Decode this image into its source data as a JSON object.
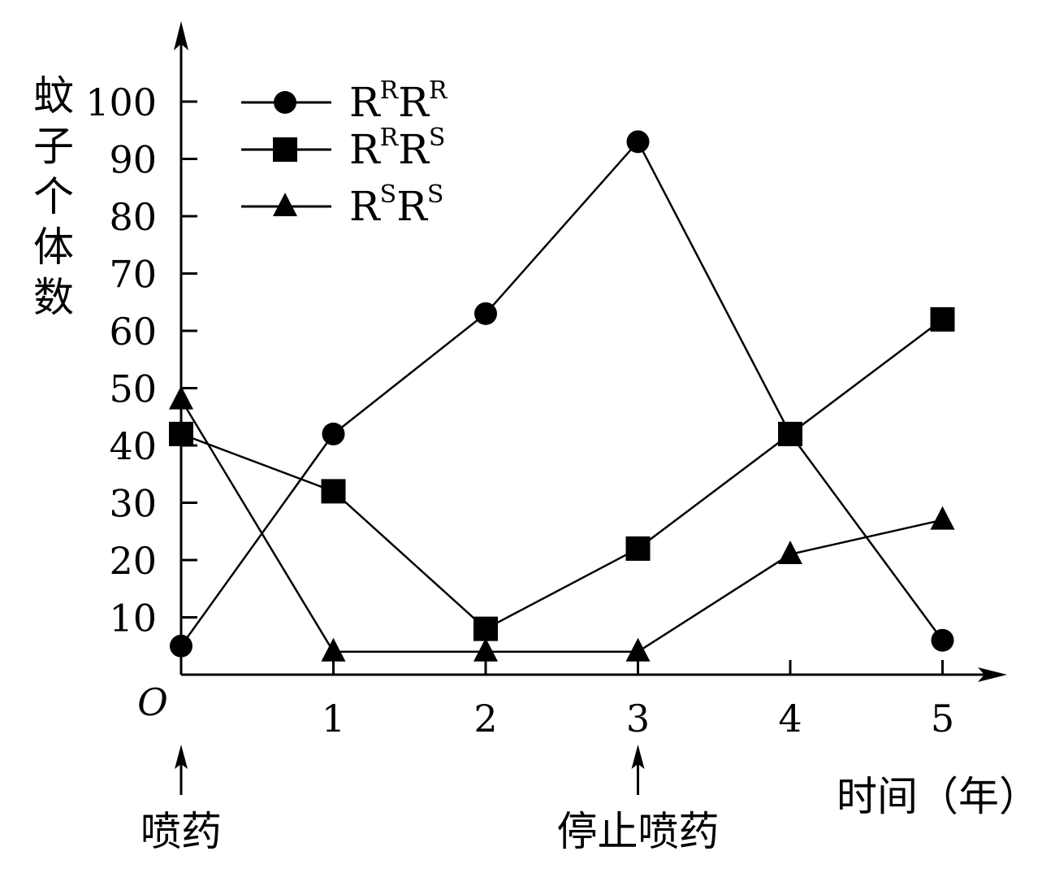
{
  "chart_data": {
    "type": "line",
    "x": [
      0,
      1,
      2,
      3,
      4,
      5
    ],
    "xlim": [
      0,
      5
    ],
    "ylim": [
      0,
      100
    ],
    "xticks": [
      "1",
      "2",
      "3",
      "4",
      "5"
    ],
    "yticks": [
      "10",
      "20",
      "30",
      "40",
      "50",
      "60",
      "70",
      "80",
      "90",
      "100"
    ],
    "origin_label": "O",
    "xlabel": "时间（年）",
    "ylabel": "蚊子个体数",
    "series": [
      {
        "name": "R^R R^R",
        "marker": "circle",
        "values": [
          5,
          42,
          63,
          93,
          42,
          6
        ]
      },
      {
        "name": "R^R R^S",
        "marker": "square",
        "values": [
          42,
          32,
          8,
          22,
          42,
          62
        ]
      },
      {
        "name": "R^S R^S",
        "marker": "triangle",
        "values": [
          48,
          4,
          4,
          4,
          21,
          27
        ]
      }
    ],
    "legend": [
      {
        "marker": "circle",
        "base1": "R",
        "sup1": "R",
        "base2": "R",
        "sup2": "R"
      },
      {
        "marker": "square",
        "base1": "R",
        "sup1": "R",
        "base2": "R",
        "sup2": "S"
      },
      {
        "marker": "triangle",
        "base1": "R",
        "sup1": "S",
        "base2": "R",
        "sup2": "S"
      }
    ],
    "legend_position": "top-left",
    "annotations": [
      {
        "text": "喷药",
        "x": 0
      },
      {
        "text": "停止喷药",
        "x": 3
      }
    ],
    "grid": false
  }
}
